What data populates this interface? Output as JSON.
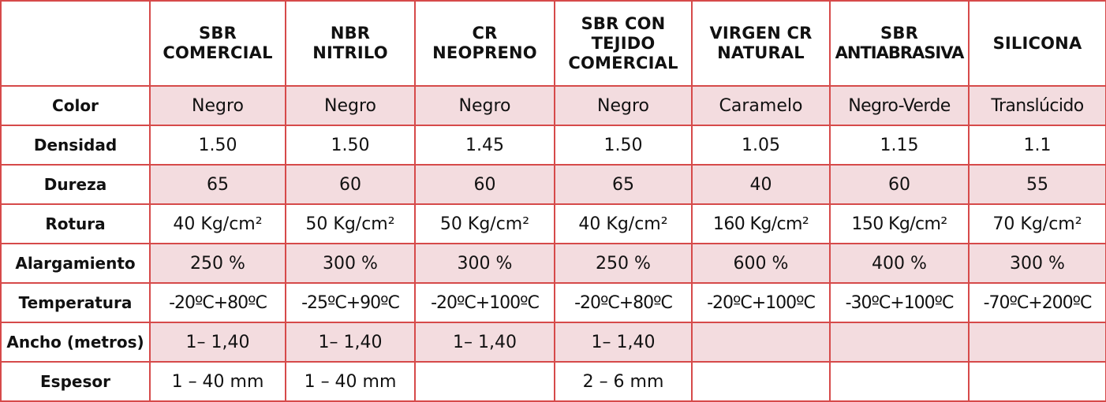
{
  "table": {
    "corner": "",
    "columns": [
      [
        "SBR",
        "COMERCIAL"
      ],
      [
        "NBR",
        "NITRILO"
      ],
      [
        "CR",
        "NEOPRENO"
      ],
      [
        "SBR CON",
        "TEJIDO",
        "COMERCIAL"
      ],
      [
        "VIRGEN CR",
        "NATURAL"
      ],
      [
        "SBR",
        "ANTIABRASIVA"
      ],
      [
        "SILICONA"
      ]
    ],
    "rows": [
      {
        "label": "Color",
        "values": [
          "Negro",
          "Negro",
          "Negro",
          "Negro",
          "Caramelo",
          "Negro-Verde",
          "Translúcido"
        ]
      },
      {
        "label": "Densidad",
        "values": [
          "1.50",
          "1.50",
          "1.45",
          "1.50",
          "1.05",
          "1.15",
          "1.1"
        ]
      },
      {
        "label": "Dureza",
        "values": [
          "65",
          "60",
          "60",
          "65",
          "40",
          "60",
          "55"
        ]
      },
      {
        "label": "Rotura",
        "values": [
          "40 Kg/cm²",
          "50 Kg/cm²",
          "50 Kg/cm²",
          "40 Kg/cm²",
          "160 Kg/cm²",
          "150 Kg/cm²",
          "70 Kg/cm²"
        ]
      },
      {
        "label": "Alargamiento",
        "values": [
          "250 %",
          "300 %",
          "300 %",
          "250 %",
          "600 %",
          "400 %",
          "300 %"
        ]
      },
      {
        "label": "Temperatura",
        "values": [
          "-20ºC+80ºC",
          "-25ºC+90ºC",
          "-20ºC+100ºC",
          "-20ºC+80ºC",
          "-20ºC+100ºC",
          "-30ºC+100ºC",
          "-70ºC+200ºC"
        ]
      },
      {
        "label": "Ancho (metros)",
        "values": [
          "1– 1,40",
          "1– 1,40",
          "1– 1,40",
          "1– 1,40",
          "",
          "",
          ""
        ]
      },
      {
        "label": "Espesor",
        "values": [
          "1 – 40 mm",
          "1 – 40 mm",
          "",
          "2 – 6 mm",
          "",
          "",
          ""
        ]
      }
    ],
    "colors": {
      "border": "#d64a4a",
      "shade": "#f3dcdf",
      "plain": "#ffffff"
    }
  }
}
